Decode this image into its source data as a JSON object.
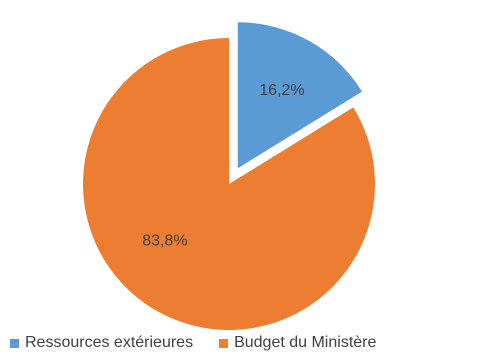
{
  "chart_data": {
    "type": "pie",
    "slices": [
      {
        "label": "Ressources extérieures",
        "value": 16.2,
        "value_label": "16,2%",
        "color": "#5B9BD5",
        "exploded": true
      },
      {
        "label": "Budget du Ministère",
        "value": 83.8,
        "value_label": "83,8%",
        "color": "#ED7D31",
        "exploded": false
      }
    ],
    "legend_position": "bottom"
  }
}
